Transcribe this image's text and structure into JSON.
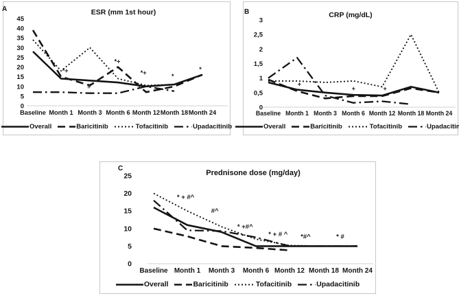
{
  "figure": {
    "background": "#ffffff",
    "panel_border_color": "#c6c6c6",
    "axis_baseline_color": "#d9d9d9",
    "ink_color": "#141414"
  },
  "chart_data": [
    {
      "id": "esr",
      "panel_label": "A",
      "title": "ESR (mm 1st hour)",
      "type": "line",
      "categories": [
        "Baseline",
        "Month 1",
        "Month 3",
        "Month 6",
        "Month 12",
        "Month 18",
        "Month 24"
      ],
      "ylim": [
        0,
        45
      ],
      "yticks": {
        "labels": [
          "0",
          "5",
          "10",
          "15",
          "20",
          "25",
          "30",
          "35",
          "40",
          "45"
        ],
        "values": [
          0,
          5,
          10,
          15,
          20,
          25,
          30,
          35,
          40,
          45
        ]
      },
      "grid": false,
      "legend_position": "bottom",
      "series": [
        {
          "name": "Overall",
          "style": "solid",
          "values": [
            28,
            14,
            13,
            12,
            10,
            11,
            16
          ]
        },
        {
          "name": "Baricitinib",
          "style": "dashed",
          "values": [
            39,
            15,
            10.5,
            20,
            7,
            10,
            16
          ]
        },
        {
          "name": "Tofacitinib",
          "style": "dotted",
          "values": [
            34,
            18,
            30,
            14,
            10.5,
            11,
            16
          ]
        },
        {
          "name": "Upadacitinib",
          "style": "dashdot",
          "values": [
            7,
            7,
            6.5,
            6.5,
            10,
            7.5,
            null
          ]
        }
      ],
      "annotations": [
        {
          "xi": 1.15,
          "y": 17,
          "text": "*+"
        },
        {
          "xi": 2.0,
          "y": 9,
          "text": "#"
        },
        {
          "xi": 3.0,
          "y": 21.8,
          "text": "*+"
        },
        {
          "xi": 3.93,
          "y": 16,
          "text": "*+"
        },
        {
          "xi": 4.97,
          "y": 14.2,
          "text": "*"
        },
        {
          "xi": 5.95,
          "y": 17.8,
          "text": "*"
        }
      ]
    },
    {
      "id": "crp",
      "panel_label": "B",
      "title": "CRP (mg/dL)",
      "type": "line",
      "categories": [
        "Baseline",
        "Month 1",
        "Month 3",
        "Month 6",
        "Month 12",
        "Month 18",
        "Month 24"
      ],
      "ylim": [
        0,
        3
      ],
      "yticks": {
        "labels": [
          "0",
          "0,5",
          "1",
          "1,5",
          "2",
          "2,5",
          "3"
        ],
        "values": [
          0,
          0.5,
          1,
          1.5,
          2,
          2.5,
          3
        ]
      },
      "grid": false,
      "legend_position": "bottom",
      "series": [
        {
          "name": "Overall",
          "style": "solid",
          "values": [
            0.85,
            0.6,
            0.5,
            0.42,
            0.4,
            0.7,
            0.5
          ]
        },
        {
          "name": "Baricitinib",
          "style": "dashed",
          "values": [
            0.95,
            0.55,
            0.3,
            0.38,
            0.38,
            0.65,
            0.5
          ]
        },
        {
          "name": "Tofacitinib",
          "style": "dotted",
          "values": [
            0.9,
            0.9,
            0.85,
            0.9,
            0.7,
            2.5,
            0.5
          ]
        },
        {
          "name": "Upadacitinib",
          "style": "dashdot",
          "values": [
            1.0,
            1.7,
            0.4,
            0.15,
            0.2,
            0.1,
            null
          ]
        }
      ],
      "annotations": [
        {
          "xi": 1.08,
          "y": 0.72,
          "text": "+"
        },
        {
          "xi": 2.96,
          "y": 0.57,
          "text": "+"
        },
        {
          "xi": 4.05,
          "y": 0.57,
          "text": "+"
        }
      ]
    },
    {
      "id": "prednisone",
      "panel_label": "C",
      "title": "Prednisone dose (mg/day)",
      "type": "line",
      "categories": [
        "Baseline",
        "Month 1",
        "Month 3",
        "Month 6",
        "Month 12",
        "Month 18",
        "Month 24"
      ],
      "ylim": [
        0,
        25
      ],
      "yticks": {
        "labels": [
          "0",
          "5",
          "10",
          "15",
          "20",
          "25"
        ],
        "values": [
          0,
          5,
          10,
          15,
          20,
          25
        ]
      },
      "grid": false,
      "legend_position": "bottom",
      "series": [
        {
          "name": "Overall",
          "style": "solid",
          "values": [
            16,
            11,
            9,
            5,
            5,
            5,
            5
          ]
        },
        {
          "name": "Baricitinib",
          "style": "dashed",
          "values": [
            10,
            7.8,
            5,
            4.5,
            3.8,
            null,
            null
          ]
        },
        {
          "name": "Tofacitinib",
          "style": "dotted",
          "values": [
            20,
            15,
            10.5,
            7,
            5.2,
            5,
            5
          ]
        },
        {
          "name": "Upadacitinib",
          "style": "dashdot",
          "values": [
            18,
            9.5,
            9.3,
            7.5,
            5,
            5,
            5
          ]
        }
      ],
      "annotations": [
        {
          "xi": 0.95,
          "y": 18.4,
          "text": "* + #^"
        },
        {
          "xi": 1.82,
          "y": 14.5,
          "text": "#^"
        },
        {
          "xi": 2.72,
          "y": 10.0,
          "text": "* +#^"
        },
        {
          "xi": 3.7,
          "y": 7.8,
          "text": "* + # ^"
        },
        {
          "xi": 4.52,
          "y": 7.1,
          "text": "*#^"
        },
        {
          "xi": 5.55,
          "y": 7.1,
          "text": "* #"
        }
      ]
    }
  ]
}
